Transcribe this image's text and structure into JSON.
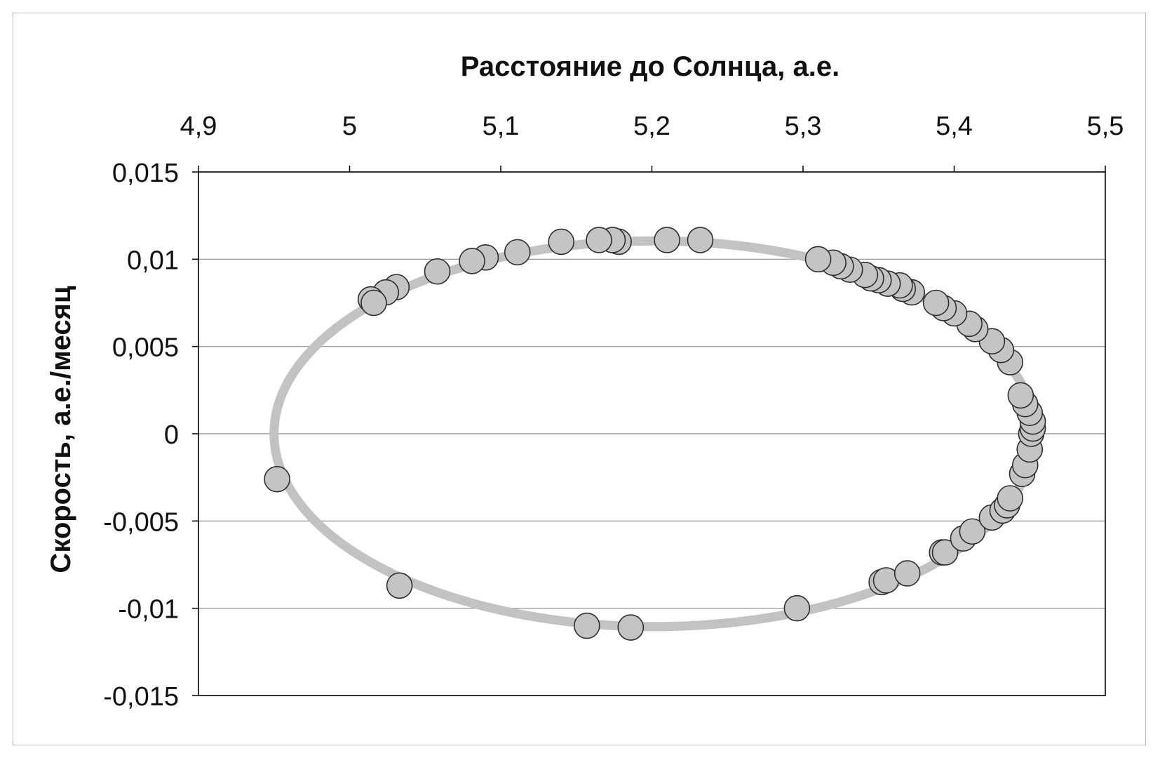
{
  "chart_data": {
    "type": "scatter",
    "title": "",
    "xlabel": "Расстояние до Солнца, а.е.",
    "ylabel": "Скорость, а.е./месяц",
    "xlim": [
      4.9,
      5.5
    ],
    "ylim": [
      -0.015,
      0.015
    ],
    "x_ticks": [
      "4,9",
      "5",
      "5,1",
      "5,2",
      "5,3",
      "5,4",
      "5,5"
    ],
    "y_ticks": [
      "0,015",
      "0,01",
      "0,005",
      "0",
      "-0,005",
      "-0,01",
      "-0,015"
    ],
    "x_axis_position": "top",
    "grid": "horizontal",
    "legend": "none",
    "colors": {
      "trajectory": "#c2c2c2",
      "marker_fill": "#c4c4c4",
      "marker_stroke": "#2e2e2e",
      "axis": "#000000",
      "grid": "#8c8c8c"
    },
    "series": [
      {
        "kind": "line",
        "description_ellipse": {
          "center_x": 5.2015,
          "center_y": 0.0,
          "semi_axis_x": 0.2515,
          "semi_axis_y": 0.01105
        }
      },
      {
        "kind": "markers",
        "points": [
          [
            4.952,
            -0.0026
          ],
          [
            5.033,
            -0.0087
          ],
          [
            5.157,
            -0.011
          ],
          [
            5.186,
            -0.0111
          ],
          [
            5.296,
            -0.01
          ],
          [
            5.352,
            -0.0085
          ],
          [
            5.355,
            -0.0084
          ],
          [
            5.369,
            -0.008
          ],
          [
            5.392,
            -0.0068
          ],
          [
            5.394,
            -0.0068
          ],
          [
            5.406,
            -0.006
          ],
          [
            5.412,
            -0.0056
          ],
          [
            5.425,
            -0.0048
          ],
          [
            5.432,
            -0.0044
          ],
          [
            5.435,
            -0.0041
          ],
          [
            5.437,
            -0.0037
          ],
          [
            5.445,
            -0.0023
          ],
          [
            5.447,
            -0.0018
          ],
          [
            5.45,
            -0.0009
          ],
          [
            5.451,
            0.0
          ],
          [
            5.452,
            0.0003
          ],
          [
            5.452,
            0.0007
          ],
          [
            5.45,
            0.0012
          ],
          [
            5.447,
            0.0017
          ],
          [
            5.444,
            0.0022
          ],
          [
            5.437,
            0.0041
          ],
          [
            5.431,
            0.0048
          ],
          [
            5.425,
            0.0053
          ],
          [
            5.414,
            0.006
          ],
          [
            5.41,
            0.0063
          ],
          [
            5.4,
            0.0069
          ],
          [
            5.393,
            0.0072
          ],
          [
            5.388,
            0.0075
          ],
          [
            5.372,
            0.0081
          ],
          [
            5.366,
            0.0083
          ],
          [
            5.364,
            0.0085
          ],
          [
            5.356,
            0.0086
          ],
          [
            5.35,
            0.0088
          ],
          [
            5.345,
            0.0089
          ],
          [
            5.341,
            0.0091
          ],
          [
            5.331,
            0.0094
          ],
          [
            5.325,
            0.0096
          ],
          [
            5.32,
            0.0098
          ],
          [
            5.31,
            0.01
          ],
          [
            5.232,
            0.0111
          ],
          [
            5.21,
            0.0111
          ],
          [
            5.178,
            0.011
          ],
          [
            5.174,
            0.0111
          ],
          [
            5.165,
            0.0111
          ],
          [
            5.14,
            0.011
          ],
          [
            5.111,
            0.0104
          ],
          [
            5.09,
            0.0101
          ],
          [
            5.081,
            0.0099
          ],
          [
            5.058,
            0.0093
          ],
          [
            5.031,
            0.0084
          ],
          [
            5.024,
            0.0081
          ],
          [
            5.014,
            0.0077
          ],
          [
            5.016,
            0.0075
          ]
        ]
      }
    ]
  }
}
